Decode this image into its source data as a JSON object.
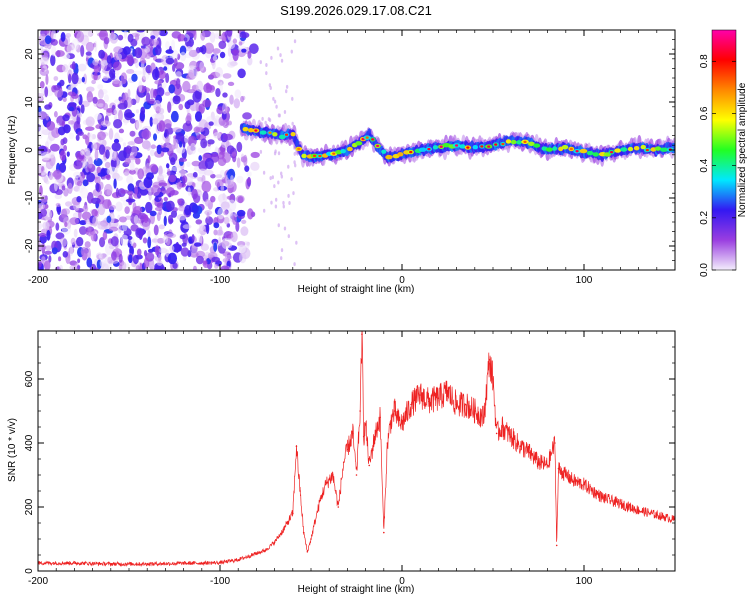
{
  "title": "S199.2026.029.17.08.C21",
  "chart_data": [
    {
      "type": "heatmap",
      "name": "spectrogram",
      "xlabel": "Height of straight line (km)",
      "ylabel": "Frequency (Hz)",
      "xlim": [
        -200,
        150
      ],
      "ylim": [
        -25,
        25
      ],
      "xticks": [
        -200,
        -100,
        0,
        100
      ],
      "yticks": [
        -20,
        -10,
        0,
        10,
        20
      ],
      "xtick_labels": [
        "-200",
        "-100",
        "0",
        "100"
      ],
      "ytick_labels": [
        "-20",
        "-10",
        "0",
        "10",
        "20"
      ],
      "colorbar": {
        "label": "Normalized spectral amplitude",
        "range": [
          0,
          0.92
        ],
        "ticks": [
          0.0,
          0.2,
          0.4,
          0.6,
          0.8
        ],
        "tick_labels": [
          "0.0",
          "0.2",
          "0.4",
          "0.6",
          "0.8"
        ],
        "colors": [
          "#f4eefc",
          "#9a3ee0",
          "#3318f2",
          "#00e8ff",
          "#22ff22",
          "#ffff00",
          "#ff8800",
          "#ff0000",
          "#ff00aa"
        ]
      },
      "noise_region_x": [
        -200,
        -78
      ],
      "ridge": [
        {
          "x": -88,
          "freq": 4.5
        },
        {
          "x": -80,
          "freq": 4.0
        },
        {
          "x": -72,
          "freq": 3.5
        },
        {
          "x": -65,
          "freq": 3.0
        },
        {
          "x": -60,
          "freq": 3.5
        },
        {
          "x": -55,
          "freq": -1.0
        },
        {
          "x": -50,
          "freq": -1.5
        },
        {
          "x": -40,
          "freq": -1.0
        },
        {
          "x": -30,
          "freq": 0.0
        },
        {
          "x": -22,
          "freq": 2.0
        },
        {
          "x": -18,
          "freq": 3.0
        },
        {
          "x": -12,
          "freq": 0.0
        },
        {
          "x": -8,
          "freq": -1.5
        },
        {
          "x": 0,
          "freq": -1.0
        },
        {
          "x": 10,
          "freq": 0.0
        },
        {
          "x": 20,
          "freq": 0.5
        },
        {
          "x": 30,
          "freq": 1.0
        },
        {
          "x": 40,
          "freq": 0.5
        },
        {
          "x": 50,
          "freq": 1.0
        },
        {
          "x": 60,
          "freq": 2.0
        },
        {
          "x": 70,
          "freq": 1.5
        },
        {
          "x": 80,
          "freq": 0.0
        },
        {
          "x": 90,
          "freq": 0.5
        },
        {
          "x": 100,
          "freq": -0.5
        },
        {
          "x": 110,
          "freq": -1.0
        },
        {
          "x": 120,
          "freq": 0.0
        },
        {
          "x": 130,
          "freq": 0.5
        },
        {
          "x": 140,
          "freq": 0.0
        },
        {
          "x": 150,
          "freq": 0.5
        }
      ]
    },
    {
      "type": "line",
      "name": "snr",
      "xlabel": "Height of straight line (km)",
      "ylabel": "SNR (10 * v/v)",
      "xlim": [
        -200,
        150
      ],
      "ylim": [
        0,
        750
      ],
      "xticks": [
        -200,
        -100,
        0,
        100
      ],
      "yticks": [
        0,
        200,
        400,
        600
      ],
      "xtick_labels": [
        "-200",
        "-100",
        "0",
        "100"
      ],
      "ytick_labels": [
        "0",
        "200",
        "400",
        "600"
      ],
      "color": "#ee2222",
      "series": [
        {
          "name": "SNR",
          "x": [
            -200,
            -180,
            -160,
            -140,
            -120,
            -100,
            -90,
            -80,
            -75,
            -70,
            -65,
            -60,
            -58,
            -56,
            -54,
            -52,
            -50,
            -48,
            -45,
            -42,
            -38,
            -35,
            -32,
            -30,
            -27,
            -25,
            -23,
            -22,
            -21,
            -20,
            -18,
            -15,
            -12,
            -10,
            -8,
            -6,
            -4,
            -2,
            0,
            5,
            10,
            15,
            20,
            25,
            30,
            35,
            40,
            45,
            48,
            50,
            52,
            55,
            60,
            65,
            70,
            75,
            80,
            84,
            85,
            86,
            90,
            95,
            100,
            110,
            120,
            130,
            140,
            150
          ],
          "y": [
            25,
            25,
            22,
            22,
            24,
            26,
            35,
            55,
            65,
            90,
            130,
            180,
            390,
            250,
            120,
            60,
            100,
            150,
            220,
            270,
            300,
            200,
            340,
            380,
            430,
            300,
            500,
            740,
            420,
            460,
            330,
            420,
            480,
            120,
            400,
            470,
            500,
            470,
            460,
            520,
            550,
            530,
            540,
            560,
            520,
            520,
            500,
            480,
            660,
            600,
            430,
            450,
            420,
            390,
            370,
            340,
            330,
            400,
            80,
            320,
            300,
            280,
            270,
            230,
            210,
            190,
            175,
            160
          ]
        }
      ]
    }
  ]
}
